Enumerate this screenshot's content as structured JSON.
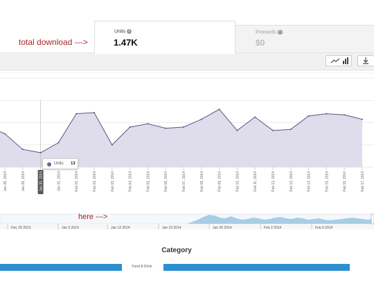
{
  "annotations": {
    "total_download": "total download --->",
    "here": "here --->"
  },
  "tabs": [
    {
      "label": "Units",
      "value": "1.47K",
      "active": true
    },
    {
      "label": "Proceeds",
      "value": "$0",
      "active": false
    }
  ],
  "toolbar": {
    "chart_type_icon": "line-chart-icon",
    "bar_icon": "bar-chart-icon",
    "export_icon": "download-icon"
  },
  "tooltip": {
    "label": "Units",
    "value": "13"
  },
  "colors": {
    "area_fill": "#dcd8ea",
    "line": "#5b557f",
    "annotation": "#b22222",
    "category_bar": "#2e8fd0",
    "navigator_fill": "#a8cde6"
  },
  "chart_data": {
    "type": "area",
    "x": [
      "Jan 28, 2014",
      "Jan 29, 2014",
      "Jan 30, 2014",
      "Jan 31, 2014",
      "Feb 01, 2014",
      "Feb 02, 2014",
      "Feb 03, 2014",
      "Feb 04, 2014",
      "Feb 05, 2014",
      "Feb 06, 2014",
      "Feb 07, 2014",
      "Feb 08, 2014",
      "Feb 09, 2014",
      "Feb 10, 2014",
      "Feb 11, 2014",
      "Feb 12, 2014",
      "Feb 13, 2014",
      "Feb 14, 2014",
      "Feb 15, 2014",
      "Feb 16, 2014",
      "Feb 17, 2014"
    ],
    "series": [
      {
        "values": [
          30,
          16,
          13,
          22,
          48,
          49,
          20,
          36,
          39,
          35,
          36,
          43,
          52,
          33,
          45,
          33,
          34,
          46,
          48,
          47,
          43
        ]
      }
    ],
    "ylim": [
      0,
      85
    ],
    "grid": true,
    "highlighted_x": "Jan 30, 2014",
    "navigator": {
      "labels": [
        "Dec 29 2013",
        "Jan 5 2014",
        "Jan 12 2014",
        "Jan 19 2014",
        "Jan 26 2014",
        "Feb 2 2014",
        "Feb 9 2014"
      ],
      "values": [
        0,
        0,
        0,
        0,
        0,
        0,
        0,
        0,
        0,
        0,
        0,
        0,
        0,
        0,
        0,
        0,
        0,
        0,
        0,
        0,
        0,
        0,
        0,
        0,
        0,
        0,
        0,
        0,
        0,
        0,
        0,
        0,
        0,
        0,
        0,
        3,
        6,
        10,
        13,
        12,
        9,
        8,
        11,
        8,
        6,
        7,
        9,
        8,
        6,
        7,
        9,
        10,
        8,
        7,
        9,
        8,
        6,
        7,
        8,
        6,
        5,
        6,
        7,
        8,
        9,
        8,
        7,
        6,
        8
      ]
    },
    "category": {
      "title": "Category",
      "label": "Food & Drink"
    }
  }
}
